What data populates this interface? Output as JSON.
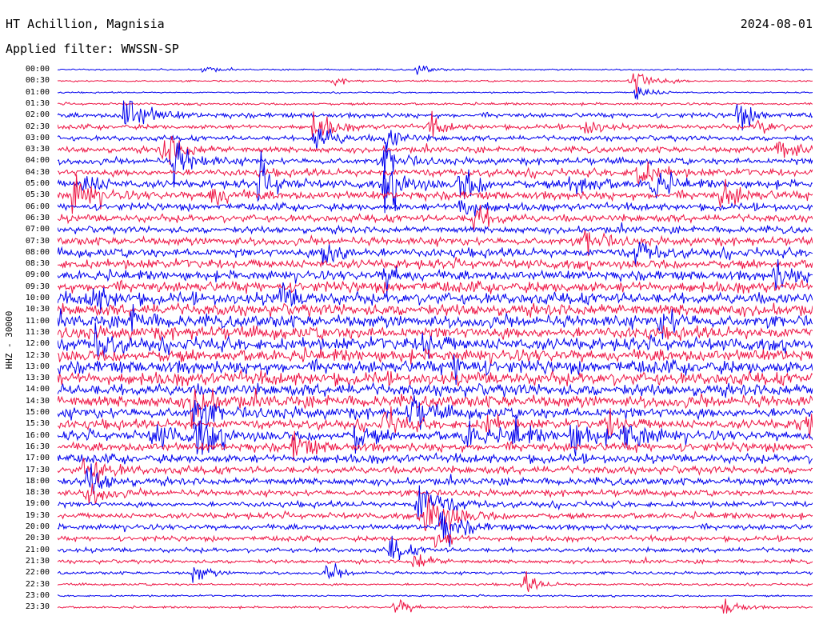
{
  "header": {
    "station": "HT Achillion, Magnisia",
    "date": "2024-08-01",
    "filter": "Applied filter: WWSSN-SP"
  },
  "axis": {
    "side_label": "HHZ - 30000"
  },
  "chart_data": {
    "type": "line",
    "title": "HT Achillion, Magnisia",
    "date": "2024-08-01",
    "subtitle": "Applied filter: WWSSN-SP",
    "ylabel": "HHZ - 30000",
    "row_labels": [
      "00:00",
      "00:30",
      "01:00",
      "01:30",
      "02:00",
      "02:30",
      "03:00",
      "03:30",
      "04:00",
      "04:30",
      "05:00",
      "05:30",
      "06:00",
      "06:30",
      "07:00",
      "07:30",
      "08:00",
      "08:30",
      "09:00",
      "09:30",
      "10:00",
      "10:30",
      "11:00",
      "11:30",
      "12:00",
      "12:30",
      "13:00",
      "13:30",
      "14:00",
      "14:30",
      "15:00",
      "15:30",
      "16:00",
      "16:30",
      "17:00",
      "17:30",
      "18:00",
      "18:30",
      "19:00",
      "19:30",
      "20:00",
      "20:30",
      "21:00",
      "21:30",
      "22:00",
      "22:30",
      "23:00",
      "23:30"
    ],
    "row_minutes": 30,
    "row_colors": [
      "#0000ee",
      "#ee1444"
    ],
    "grid": false,
    "legend": "none",
    "activity_level": [
      0.05,
      0.07,
      0.05,
      0.12,
      0.3,
      0.28,
      0.32,
      0.38,
      0.42,
      0.48,
      0.52,
      0.55,
      0.45,
      0.48,
      0.44,
      0.52,
      0.58,
      0.62,
      0.64,
      0.72,
      0.78,
      0.8,
      0.82,
      0.84,
      0.86,
      0.85,
      0.88,
      0.86,
      0.82,
      0.8,
      0.74,
      0.62,
      0.66,
      0.58,
      0.56,
      0.5,
      0.46,
      0.4,
      0.35,
      0.38,
      0.36,
      0.3,
      0.28,
      0.22,
      0.16,
      0.12,
      0.08,
      0.1
    ],
    "events": [
      {
        "row": 0,
        "minute": 5.8,
        "amplitude": 0.4
      },
      {
        "row": 0,
        "minute": 14.3,
        "amplitude": 0.6
      },
      {
        "row": 1,
        "minute": 22.8,
        "amplitude": 1.6
      },
      {
        "row": 1,
        "minute": 11.0,
        "amplitude": 0.4
      },
      {
        "row": 2,
        "minute": 23.0,
        "amplitude": 1.0
      },
      {
        "row": 4,
        "minute": 2.6,
        "amplitude": 2.2
      },
      {
        "row": 4,
        "minute": 27.0,
        "amplitude": 1.3
      },
      {
        "row": 5,
        "minute": 10.2,
        "amplitude": 1.4
      },
      {
        "row": 5,
        "minute": 14.8,
        "amplitude": 0.9
      },
      {
        "row": 5,
        "minute": 21.0,
        "amplitude": 0.9
      },
      {
        "row": 5,
        "minute": 27.8,
        "amplitude": 0.9
      },
      {
        "row": 6,
        "minute": 10.2,
        "amplitude": 1.6
      },
      {
        "row": 6,
        "minute": 13.0,
        "amplitude": 1.2
      },
      {
        "row": 7,
        "minute": 4.2,
        "amplitude": 1.7
      },
      {
        "row": 7,
        "minute": 28.6,
        "amplitude": 1.4
      },
      {
        "row": 8,
        "minute": 4.6,
        "amplitude": 1.8
      },
      {
        "row": 8,
        "minute": 13.0,
        "amplitude": 1.4
      },
      {
        "row": 9,
        "minute": 23.0,
        "amplitude": 1.4
      },
      {
        "row": 10,
        "minute": 1.0,
        "amplitude": 1.2
      },
      {
        "row": 10,
        "minute": 8.0,
        "amplitude": 1.6
      },
      {
        "row": 10,
        "minute": 13.0,
        "amplitude": 2.0
      },
      {
        "row": 10,
        "minute": 16.0,
        "amplitude": 1.6
      },
      {
        "row": 10,
        "minute": 20.4,
        "amplitude": 1.6
      },
      {
        "row": 10,
        "minute": 23.6,
        "amplitude": 1.4
      },
      {
        "row": 11,
        "minute": 0.6,
        "amplitude": 1.7
      },
      {
        "row": 11,
        "minute": 6.0,
        "amplitude": 1.4
      },
      {
        "row": 11,
        "minute": 26.4,
        "amplitude": 1.4
      },
      {
        "row": 12,
        "minute": 16.0,
        "amplitude": 1.3
      },
      {
        "row": 13,
        "minute": 16.5,
        "amplitude": 1.4
      },
      {
        "row": 15,
        "minute": 21.0,
        "amplitude": 1.3
      },
      {
        "row": 16,
        "minute": 10.6,
        "amplitude": 1.7
      },
      {
        "row": 16,
        "minute": 23.0,
        "amplitude": 1.2
      },
      {
        "row": 18,
        "minute": 13.0,
        "amplitude": 1.2
      },
      {
        "row": 18,
        "minute": 28.5,
        "amplitude": 1.2
      },
      {
        "row": 20,
        "minute": 1.3,
        "amplitude": 1.3
      },
      {
        "row": 20,
        "minute": 8.8,
        "amplitude": 1.1
      },
      {
        "row": 22,
        "minute": 2.8,
        "amplitude": 1.2
      },
      {
        "row": 22,
        "minute": 24.0,
        "amplitude": 1.3
      },
      {
        "row": 24,
        "minute": 1.5,
        "amplitude": 1.3
      },
      {
        "row": 24,
        "minute": 14.5,
        "amplitude": 1.2
      },
      {
        "row": 26,
        "minute": 15.8,
        "amplitude": 1.2
      },
      {
        "row": 29,
        "minute": 5.3,
        "amplitude": 1.6
      },
      {
        "row": 30,
        "minute": 5.4,
        "amplitude": 1.5
      },
      {
        "row": 30,
        "minute": 14.0,
        "amplitude": 1.5
      },
      {
        "row": 31,
        "minute": 13.0,
        "amplitude": 1.2
      },
      {
        "row": 31,
        "minute": 17.0,
        "amplitude": 1.0
      },
      {
        "row": 31,
        "minute": 21.8,
        "amplitude": 1.3
      },
      {
        "row": 31,
        "minute": 29.5,
        "amplitude": 1.3
      },
      {
        "row": 32,
        "minute": 3.8,
        "amplitude": 1.4
      },
      {
        "row": 32,
        "minute": 5.5,
        "amplitude": 1.9
      },
      {
        "row": 32,
        "minute": 11.8,
        "amplitude": 1.2
      },
      {
        "row": 32,
        "minute": 16.2,
        "amplitude": 1.3
      },
      {
        "row": 32,
        "minute": 18.0,
        "amplitude": 1.3
      },
      {
        "row": 32,
        "minute": 20.4,
        "amplitude": 1.6
      },
      {
        "row": 32,
        "minute": 22.6,
        "amplitude": 1.7
      },
      {
        "row": 33,
        "minute": 9.4,
        "amplitude": 1.3
      },
      {
        "row": 35,
        "minute": 1.1,
        "amplitude": 1.7
      },
      {
        "row": 36,
        "minute": 1.2,
        "amplitude": 1.5
      },
      {
        "row": 37,
        "minute": 1.2,
        "amplitude": 1.3
      },
      {
        "row": 38,
        "minute": 14.3,
        "amplitude": 2.4
      },
      {
        "row": 39,
        "minute": 14.6,
        "amplitude": 2.6
      },
      {
        "row": 40,
        "minute": 15.2,
        "amplitude": 1.8
      },
      {
        "row": 41,
        "minute": 15.0,
        "amplitude": 1.0
      },
      {
        "row": 42,
        "minute": 13.2,
        "amplitude": 1.2
      },
      {
        "row": 43,
        "minute": 14.2,
        "amplitude": 1.0
      },
      {
        "row": 44,
        "minute": 5.4,
        "amplitude": 0.9
      },
      {
        "row": 44,
        "minute": 10.7,
        "amplitude": 0.9
      },
      {
        "row": 45,
        "minute": 18.5,
        "amplitude": 1.0
      },
      {
        "row": 47,
        "minute": 13.4,
        "amplitude": 1.0
      },
      {
        "row": 47,
        "minute": 26.5,
        "amplitude": 1.0
      }
    ]
  }
}
